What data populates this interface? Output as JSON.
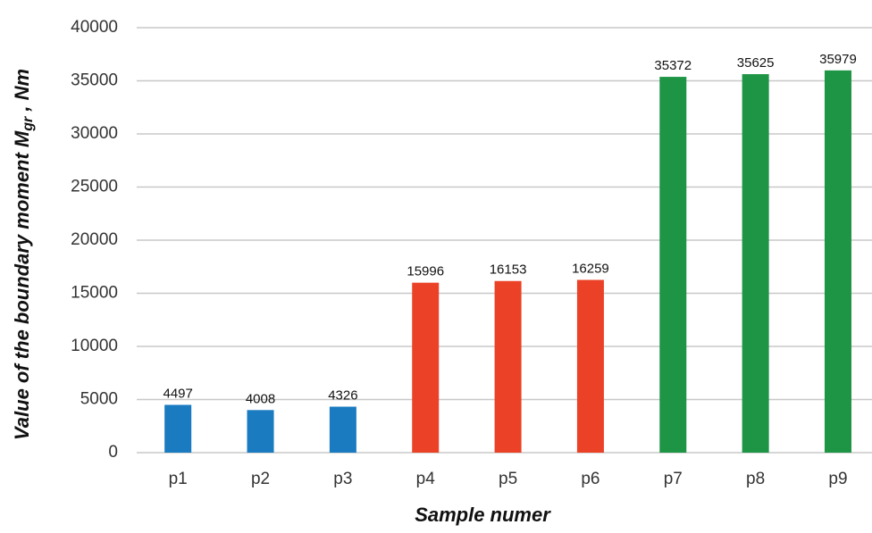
{
  "chart_data": {
    "type": "bar",
    "x_label": "Sample numer",
    "y_label": [
      "Value of the boundary moment M",
      "gr",
      " ,  Nm"
    ],
    "categories": [
      "p1",
      "p2",
      "p3",
      "p4",
      "p5",
      "p6",
      "p7",
      "p8",
      "p9"
    ],
    "values": [
      4497,
      4008,
      4326,
      15996,
      16153,
      16259,
      35372,
      35625,
      35979
    ],
    "colors": [
      "#1a7bc0",
      "#1a7bc0",
      "#1a7bc0",
      "#ea4127",
      "#ea4127",
      "#ea4127",
      "#1e9445",
      "#1e9445",
      "#1e9445"
    ],
    "ylim": [
      0,
      40000
    ],
    "yticks": [
      0,
      5000,
      10000,
      15000,
      20000,
      25000,
      30000,
      35000,
      40000
    ],
    "grid": true
  }
}
